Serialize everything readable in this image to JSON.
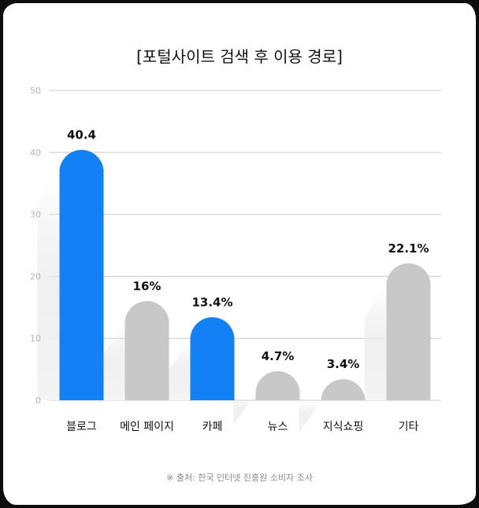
{
  "chart_data": {
    "type": "bar",
    "title": "[포털사이트 검색 후 이용 경로]",
    "categories": [
      "블로그",
      "메인 페이지",
      "카페",
      "뉴스",
      "지식쇼핑",
      "기타"
    ],
    "values": [
      40.4,
      16,
      13.4,
      4.7,
      3.4,
      22.1
    ],
    "value_labels": [
      "40.4",
      "16%",
      "13.4%",
      "4.7%",
      "3.4%",
      "22.1%"
    ],
    "highlight": [
      true,
      false,
      true,
      false,
      false,
      false
    ],
    "yticks": [
      "0",
      "10",
      "20",
      "30",
      "40",
      "50"
    ],
    "ylim": [
      0,
      50
    ],
    "grid": true,
    "xlabel": "",
    "ylabel": "",
    "source": "※ 출처: 한국 인터넷 진흥원 소비자 조사",
    "colors": {
      "highlight": "#1381f5",
      "default": "#c8c8c8",
      "grid": "#cccccc",
      "tick": "#b5b5b5",
      "label": "#111111"
    }
  }
}
